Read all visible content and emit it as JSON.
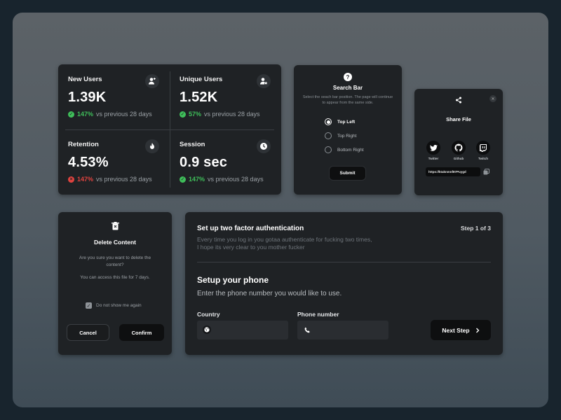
{
  "stats": [
    {
      "label": "New Users",
      "value": "1.39K",
      "pct": "147%",
      "trend": "up",
      "suffix": "vs previous 28 days",
      "icon": "add-user-icon"
    },
    {
      "label": "Unique Users",
      "value": "1.52K",
      "pct": "57%",
      "trend": "up",
      "suffix": "vs previous 28 days",
      "icon": "user-star-icon"
    },
    {
      "label": "Retention",
      "value": "4.53%",
      "pct": "147%",
      "trend": "down",
      "suffix": "vs previous 28 days",
      "icon": "flame-icon"
    },
    {
      "label": "Session",
      "value": "0.9 sec",
      "pct": "147%",
      "trend": "up",
      "suffix": "vs previous 28 days",
      "icon": "clock-icon"
    }
  ],
  "search_bar": {
    "title": "Search Bar",
    "description": "Select the seach bar position. The page will continue to appear from the same side.",
    "options": [
      "Top Left",
      "Top Right",
      "Bottom Right"
    ],
    "selected": "Top Left",
    "submit_label": "Submit"
  },
  "share_file": {
    "title": "Share File",
    "socials": [
      "Twitter",
      "Github",
      "Twitch"
    ],
    "link": "https://ktaknmnf87Puygd"
  },
  "delete_content": {
    "title": "Delete Content",
    "question": "Are you sure you want to delete the content?",
    "note": "You can access this file for 7 days.",
    "checkbox_label": "Do not show me again",
    "checkbox_checked": true,
    "cancel_label": "Cancel",
    "confirm_label": "Confirm"
  },
  "two_factor": {
    "title": "Set up two factor authentication",
    "step": "Step 1 of 3",
    "description": "Every time you log in you gotaa authenticate for fucking two times, I hope its very clear to you mother fucker",
    "section_title": "Setup your phone",
    "section_subtitle": "Enter the phone number you would like to use.",
    "country_label": "Country",
    "country_value": "",
    "phone_label": "Phone number",
    "phone_value": "",
    "next_label": "Next Step"
  },
  "colors": {
    "up": "#3fbf5a",
    "down": "#e0433f",
    "card": "#1f2225"
  }
}
